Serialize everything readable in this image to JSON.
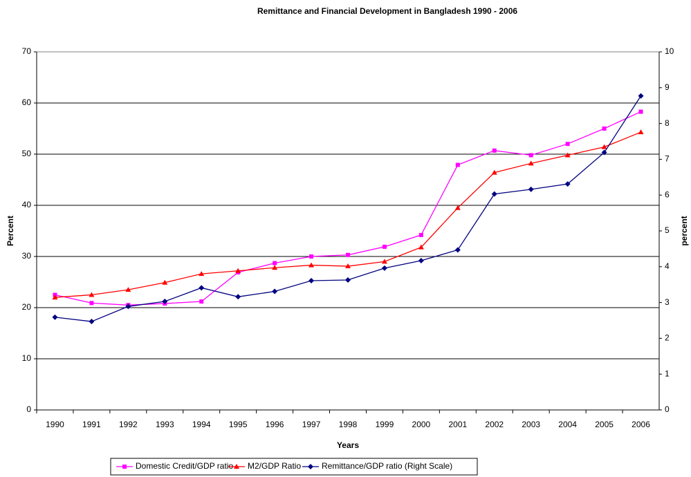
{
  "chart_data": {
    "type": "line",
    "title": "Remittance and Financial Development in Bangladesh 1990 - 2006",
    "x_label": "Years",
    "y_label": "Percent",
    "y2_label": "percent",
    "categories": [
      "1990",
      "1991",
      "1992",
      "1993",
      "1994",
      "1995",
      "1996",
      "1997",
      "1998",
      "1999",
      "2000",
      "2001",
      "2002",
      "2003",
      "2004",
      "2005",
      "2006"
    ],
    "series": [
      {
        "name": "Domestic Credit/GDP ratio",
        "color": "#ff00ff",
        "marker": "square",
        "values": [
          22.5,
          20.9,
          20.5,
          20.8,
          21.2,
          26.9,
          28.7,
          30.0,
          30.3,
          31.9,
          34.2,
          47.9,
          50.7,
          49.8,
          52.0,
          55.0,
          58.3
        ]
      },
      {
        "name": "M2/GDP Ratio",
        "color": "#ff0000",
        "marker": "triangle",
        "values": [
          22.0,
          22.5,
          23.5,
          24.9,
          26.6,
          27.2,
          27.8,
          28.3,
          28.1,
          29.0,
          31.8,
          39.5,
          46.4,
          48.2,
          49.8,
          51.4,
          54.3
        ]
      },
      {
        "name": "Remittance/GDP ratio (Right Scale)",
        "color": "#000080",
        "marker": "diamond",
        "axis": "y2",
        "values": [
          2.59,
          2.47,
          2.89,
          3.03,
          3.41,
          3.16,
          3.31,
          3.61,
          3.63,
          3.96,
          4.17,
          4.47,
          6.03,
          6.16,
          6.31,
          7.19,
          8.77
        ]
      }
    ],
    "ylim": [
      0,
      70
    ],
    "yticks": [
      0,
      10,
      20,
      30,
      40,
      50,
      60,
      70
    ],
    "y2lim": [
      0,
      10
    ],
    "y2ticks": [
      0,
      1,
      2,
      3,
      4,
      5,
      6,
      7,
      8,
      9,
      10
    ],
    "grid": true,
    "legend": "bottom"
  }
}
